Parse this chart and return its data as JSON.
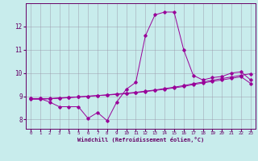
{
  "xlabel": "Windchill (Refroidissement éolien,°C)",
  "bg_color": "#c8ecec",
  "line_color": "#990099",
  "grid_color": "#9999aa",
  "xlim": [
    -0.5,
    23.5
  ],
  "ylim": [
    7.6,
    13.0
  ],
  "yticks": [
    8,
    9,
    10,
    11,
    12
  ],
  "xticks": [
    0,
    1,
    2,
    3,
    4,
    5,
    6,
    7,
    8,
    9,
    10,
    11,
    12,
    13,
    14,
    15,
    16,
    17,
    18,
    19,
    20,
    21,
    22,
    23
  ],
  "main_x": [
    0,
    1,
    2,
    3,
    4,
    5,
    6,
    7,
    8,
    9,
    10,
    11,
    12,
    13,
    14,
    15,
    16,
    17,
    18,
    19,
    20,
    21,
    22,
    23
  ],
  "main_y": [
    8.9,
    8.9,
    8.75,
    8.55,
    8.55,
    8.55,
    8.05,
    8.3,
    7.95,
    8.75,
    9.3,
    9.6,
    11.6,
    12.5,
    12.62,
    12.62,
    11.0,
    9.9,
    9.7,
    9.8,
    9.85,
    10.0,
    10.05,
    9.7
  ],
  "line2_x": [
    0,
    1,
    2,
    3,
    4,
    5,
    6,
    7,
    8,
    9,
    10,
    11,
    12,
    13,
    14,
    15,
    16,
    17,
    18,
    19,
    20,
    21,
    22,
    23
  ],
  "line2_y": [
    8.9,
    8.9,
    8.9,
    8.93,
    8.95,
    8.97,
    9.0,
    9.03,
    9.05,
    9.08,
    9.11,
    9.15,
    9.2,
    9.25,
    9.3,
    9.36,
    9.42,
    9.5,
    9.57,
    9.64,
    9.7,
    9.77,
    9.84,
    9.55
  ],
  "line3_x": [
    0,
    1,
    2,
    3,
    4,
    5,
    6,
    7,
    8,
    9,
    10,
    11,
    12,
    13,
    14,
    15,
    16,
    17,
    18,
    19,
    20,
    21,
    22,
    23
  ],
  "line3_y": [
    8.87,
    8.87,
    8.89,
    8.91,
    8.94,
    8.97,
    9.0,
    9.03,
    9.06,
    9.1,
    9.13,
    9.17,
    9.22,
    9.27,
    9.33,
    9.39,
    9.46,
    9.54,
    9.61,
    9.69,
    9.76,
    9.83,
    9.9,
    9.97
  ]
}
